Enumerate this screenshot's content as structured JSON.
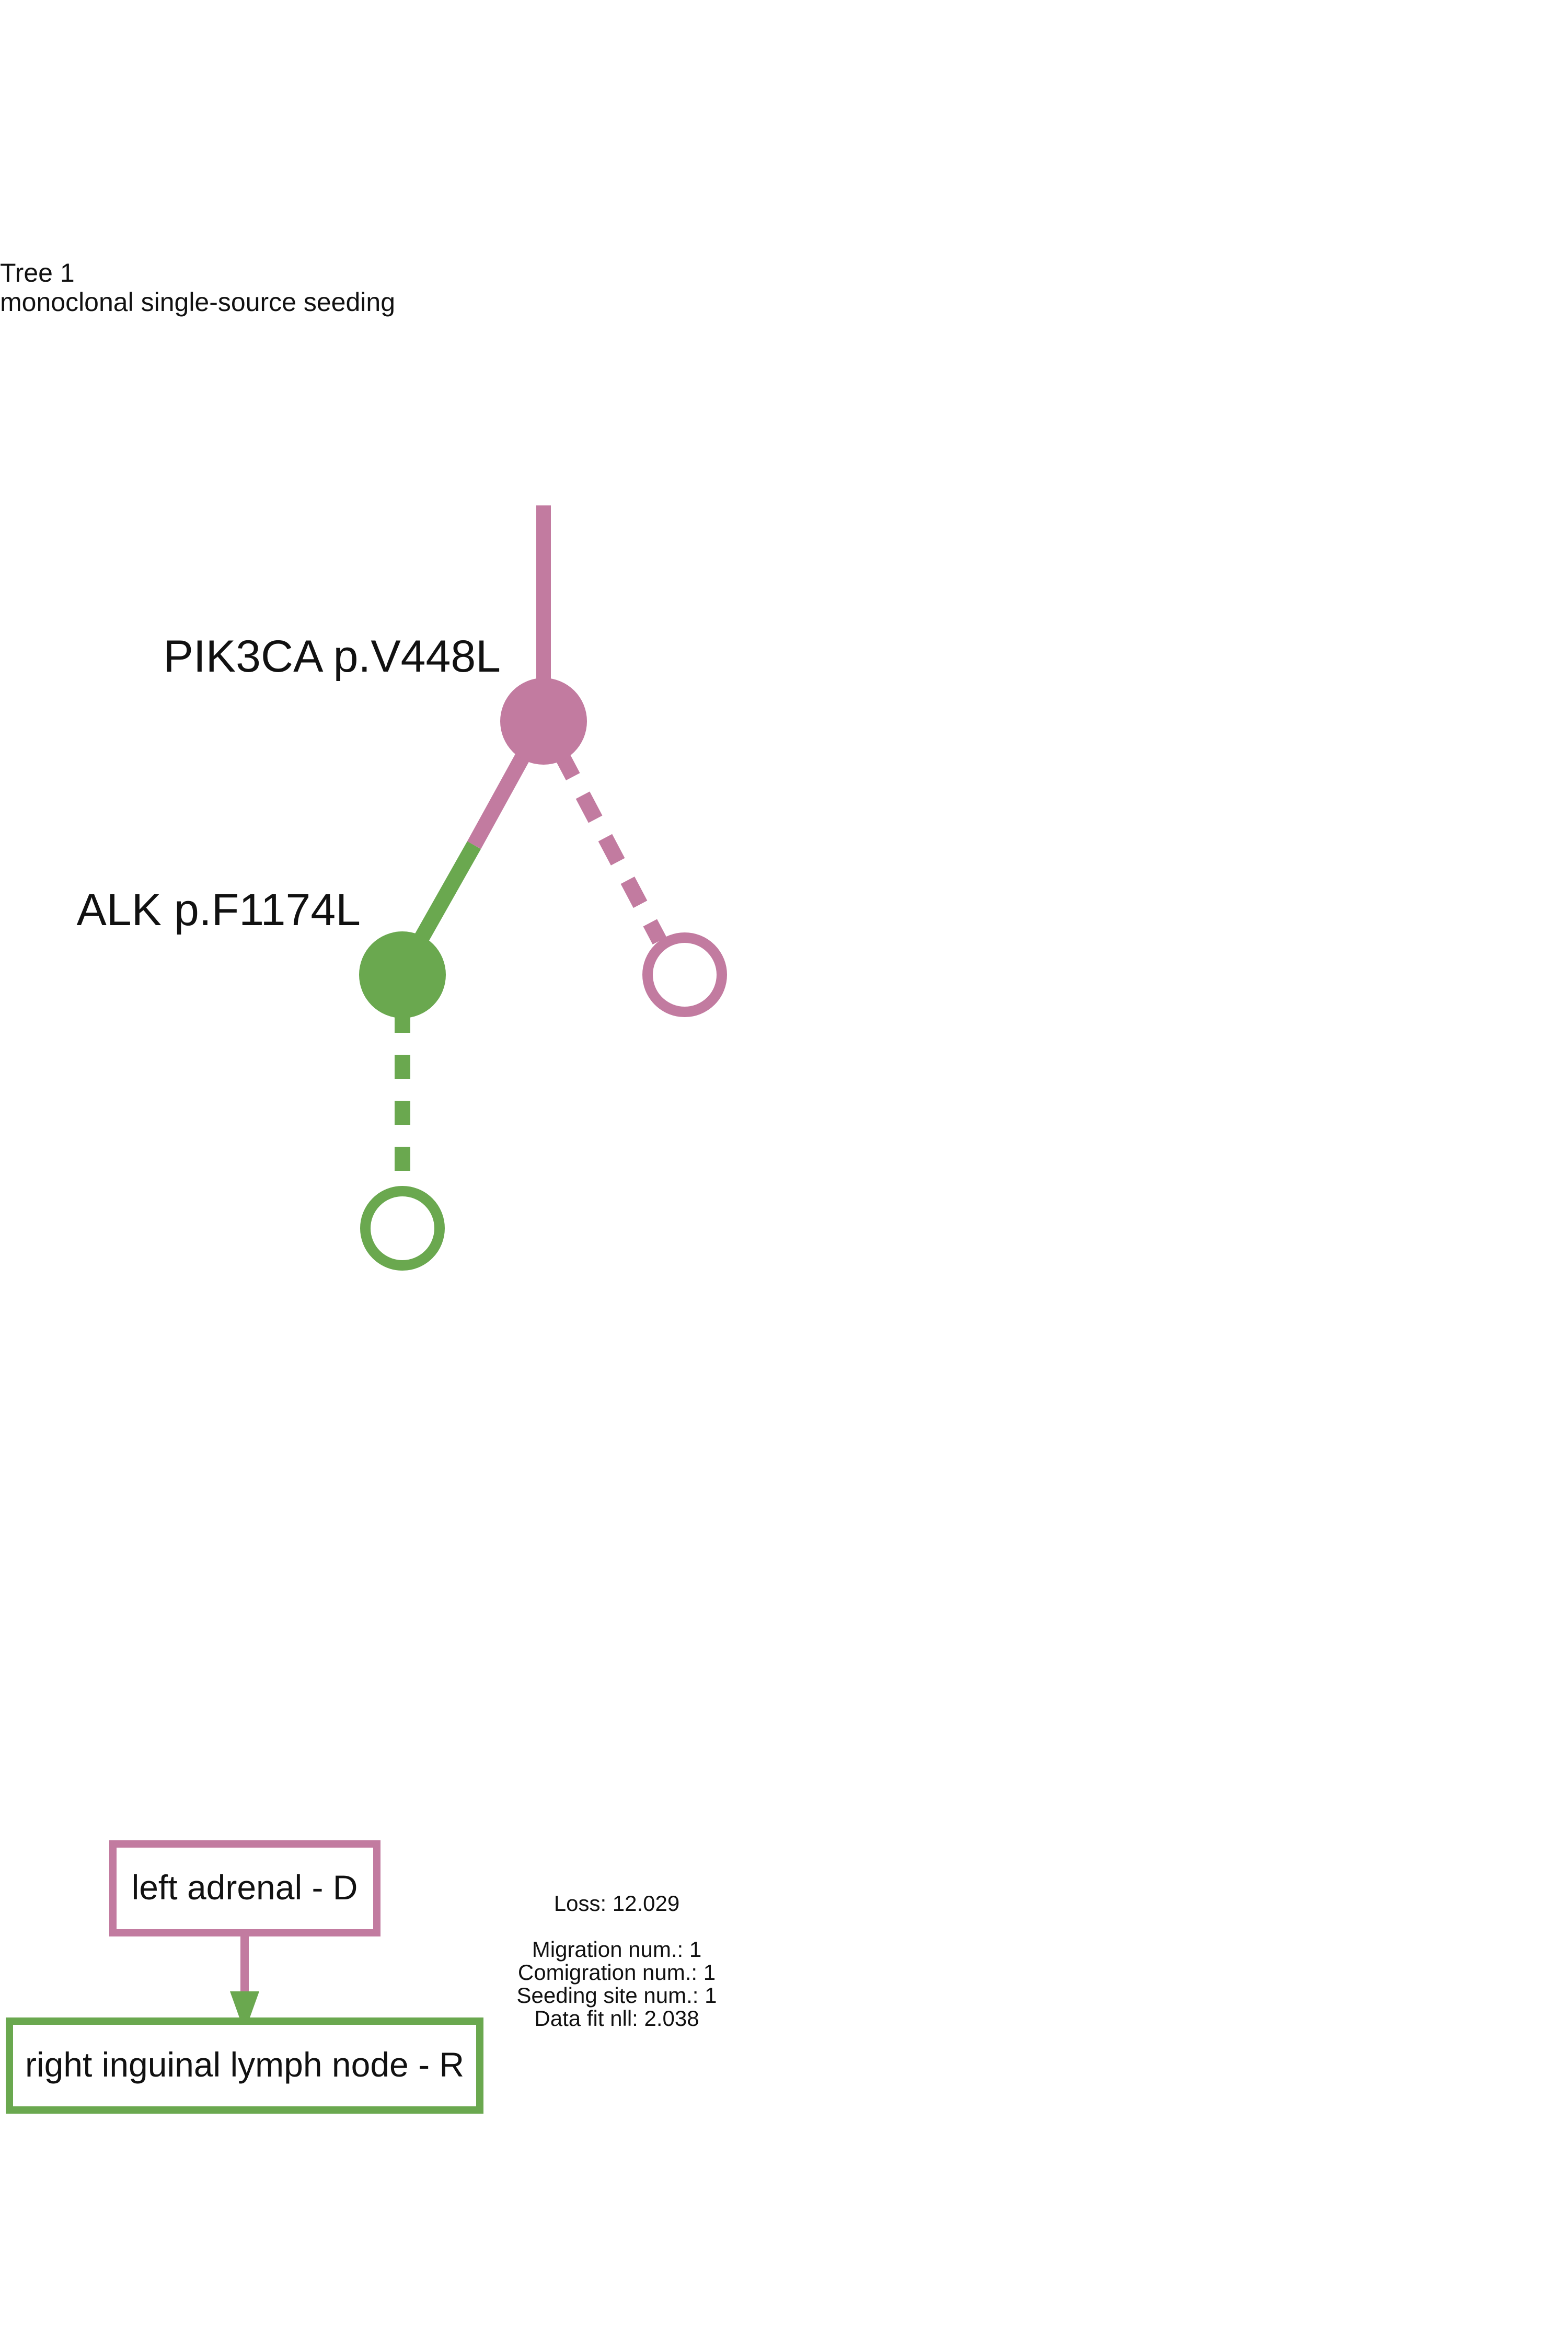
{
  "header": {
    "title": "Tree 1",
    "subtitle": "monoclonal single-source seeding"
  },
  "colors": {
    "primary_site": "#C27BA0",
    "metastatic_site": "#6AA84F"
  },
  "tree": {
    "nodes": [
      {
        "id": "root",
        "label": "PIK3CA p.V448L",
        "site": "left adrenal - D",
        "type": "filled"
      },
      {
        "id": "alk",
        "label": "ALK p.F1174L",
        "site": "right inguinal lymph node - R",
        "type": "filled"
      },
      {
        "id": "leaf-primary",
        "label": "",
        "site": "left adrenal - D",
        "type": "hollow"
      },
      {
        "id": "leaf-metastatic",
        "label": "",
        "site": "right inguinal lymph node - R",
        "type": "hollow"
      }
    ],
    "edges": [
      {
        "from": "root",
        "to": "alk",
        "style": "solid",
        "migration": true
      },
      {
        "from": "root",
        "to": "leaf-primary",
        "style": "dashed",
        "migration": false
      },
      {
        "from": "alk",
        "to": "leaf-metastatic",
        "style": "dashed",
        "migration": false
      }
    ]
  },
  "migration_graph": {
    "sites": [
      {
        "label": "left adrenal - D",
        "color": "#C27BA0"
      },
      {
        "label": "right inguinal lymph node - R",
        "color": "#6AA84F"
      }
    ],
    "edges": [
      {
        "from": "left adrenal - D",
        "to": "right inguinal lymph node - R",
        "count": 1
      }
    ]
  },
  "stats": {
    "loss": "Loss: 12.029",
    "migration": "Migration num.: 1",
    "comigration": "Comigration num.: 1",
    "seeding_sites": "Seeding site num.: 1",
    "data_fit": "Data fit nll: 2.038"
  }
}
